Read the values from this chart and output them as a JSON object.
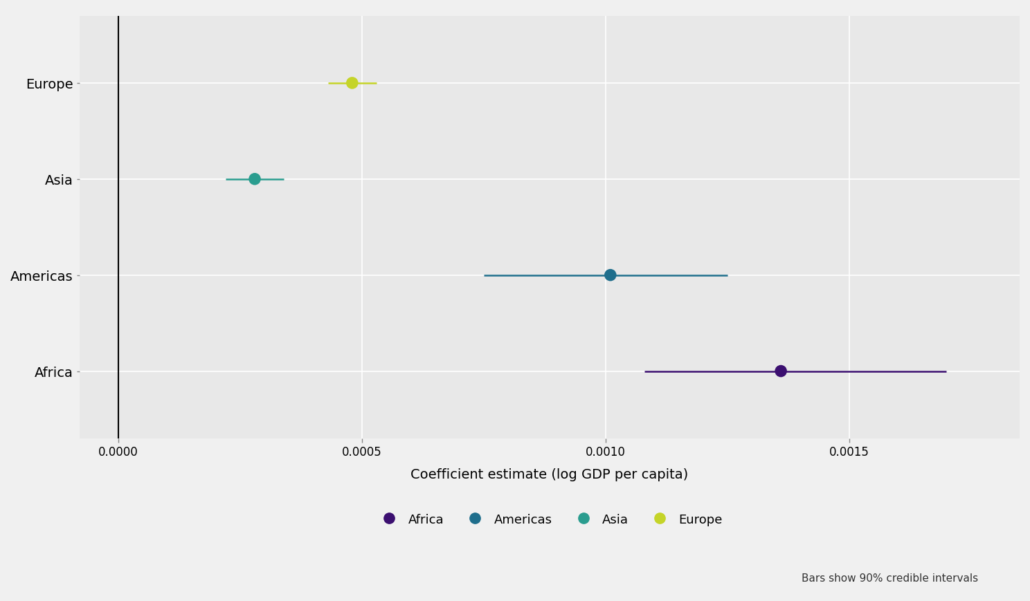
{
  "continents": [
    "Africa",
    "Americas",
    "Asia",
    "Europe"
  ],
  "estimates": [
    0.00136,
    0.00101,
    0.00028,
    0.00048
  ],
  "ci_low": [
    0.00108,
    0.00075,
    0.00022,
    0.00043
  ],
  "ci_high": [
    0.0017,
    0.00125,
    0.00034,
    0.00053
  ],
  "colors": {
    "Africa": "#3B0F70",
    "Americas": "#1F6E8C",
    "Asia": "#2A9D8F",
    "Europe": "#C5D429"
  },
  "xlabel": "Coefficient estimate (log GDP per capita)",
  "xlim": [
    -8e-05,
    0.00185
  ],
  "xticks": [
    0.0,
    0.0005,
    0.001,
    0.0015
  ],
  "vline_x": 0.0,
  "plot_background_color": "#E8E8E8",
  "fig_background_color": "#F0F0F0",
  "grid_color": "#FFFFFF",
  "footnote": "Bars show 90% credible intervals",
  "legend_order": [
    "Africa",
    "Americas",
    "Asia",
    "Europe"
  ],
  "y_order": [
    "Europe",
    "Asia",
    "Americas",
    "Africa"
  ],
  "line_width": 1.8,
  "marker_size": 160,
  "xlabel_fontsize": 14,
  "tick_fontsize": 12,
  "ytick_fontsize": 14,
  "legend_fontsize": 13,
  "footnote_fontsize": 11
}
